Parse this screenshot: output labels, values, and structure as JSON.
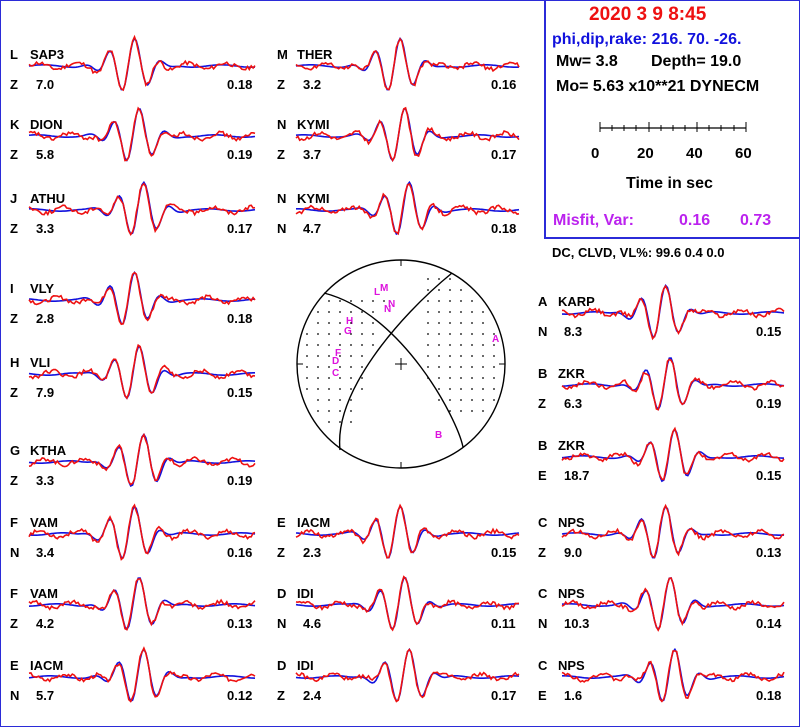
{
  "event": {
    "date_time": "2020  3  9    8:45",
    "phi_dip_rake": "phi,dip,rake: 216. 70.  -26.",
    "mw": "Mw=  3.8",
    "depth": "Depth=     19.0",
    "mo": "Mo=  5.63 x10**21 DYNECM",
    "time_axis_ticks": [
      "0",
      "20",
      "40",
      "60"
    ],
    "time_axis_label": "Time  in sec",
    "misfit_label": "Misfit, Var:",
    "misfit": "0.16",
    "var": "0.73",
    "dc_clvd_vl": "DC, CLVD, VL%:  99.6     0.4    0.0"
  },
  "colors": {
    "observed": "#ee1111",
    "synthetic": "#1111dd",
    "frame": "#2b2bd8",
    "station": "#dd11dd",
    "title": "#ee1111",
    "param": "#1111dd",
    "misfit": "#bb22ee"
  },
  "chart_data": {
    "type": "line",
    "series_names": [
      "observed",
      "synthetic"
    ],
    "traces": [
      {
        "letter": "L",
        "station": "SAP3",
        "comp": "Z",
        "amp": "7.0",
        "corr": "0.18"
      },
      {
        "letter": "K",
        "station": "DION",
        "comp": "Z",
        "amp": "5.8",
        "corr": "0.19"
      },
      {
        "letter": "J",
        "station": "ATHU",
        "comp": "Z",
        "amp": "3.3",
        "corr": "0.17"
      },
      {
        "letter": "I",
        "station": "VLY",
        "comp": "Z",
        "amp": "2.8",
        "corr": "0.18"
      },
      {
        "letter": "H",
        "station": "VLI",
        "comp": "Z",
        "amp": "7.9",
        "corr": "0.15"
      },
      {
        "letter": "G",
        "station": "KTHA",
        "comp": "Z",
        "amp": "3.3",
        "corr": "0.19"
      },
      {
        "letter": "F",
        "station": "VAM",
        "comp": "N",
        "amp": "3.4",
        "corr": "0.16"
      },
      {
        "letter": "F",
        "station": "VAM",
        "comp": "Z",
        "amp": "4.2",
        "corr": "0.13"
      },
      {
        "letter": "E",
        "station": "IACM",
        "comp": "N",
        "amp": "5.7",
        "corr": "0.12"
      },
      {
        "letter": "M",
        "station": "THER",
        "comp": "Z",
        "amp": "3.2",
        "corr": "0.16"
      },
      {
        "letter": "N",
        "station": "KYMI",
        "comp": "Z",
        "amp": "3.7",
        "corr": "0.17"
      },
      {
        "letter": "N",
        "station": "KYMI",
        "comp": "N",
        "amp": "4.7",
        "corr": "0.18"
      },
      {
        "letter": "E",
        "station": "IACM",
        "comp": "Z",
        "amp": "2.3",
        "corr": "0.15"
      },
      {
        "letter": "D",
        "station": "IDI",
        "comp": "N",
        "amp": "4.6",
        "corr": "0.11"
      },
      {
        "letter": "D",
        "station": "IDI",
        "comp": "Z",
        "amp": "2.4",
        "corr": "0.17"
      },
      {
        "letter": "A",
        "station": "KARP",
        "comp": "N",
        "amp": "8.3",
        "corr": "0.15"
      },
      {
        "letter": "B",
        "station": "ZKR",
        "comp": "Z",
        "amp": "6.3",
        "corr": "0.19"
      },
      {
        "letter": "B",
        "station": "ZKR",
        "comp": "E",
        "amp": "18.7",
        "corr": "0.15"
      },
      {
        "letter": "C",
        "station": "NPS",
        "comp": "Z",
        "amp": "9.0",
        "corr": "0.13"
      },
      {
        "letter": "C",
        "station": "NPS",
        "comp": "N",
        "amp": "10.3",
        "corr": "0.14"
      },
      {
        "letter": "C",
        "station": "NPS",
        "comp": "E",
        "amp": "1.6",
        "corr": "0.18"
      }
    ],
    "focal_mechanism": {
      "strike": 216,
      "dip": 70,
      "rake": -26
    },
    "focal_station_labels": [
      "M",
      "L",
      "N",
      "N",
      "H",
      "G",
      "F",
      "D",
      "C",
      "A",
      "B"
    ]
  }
}
